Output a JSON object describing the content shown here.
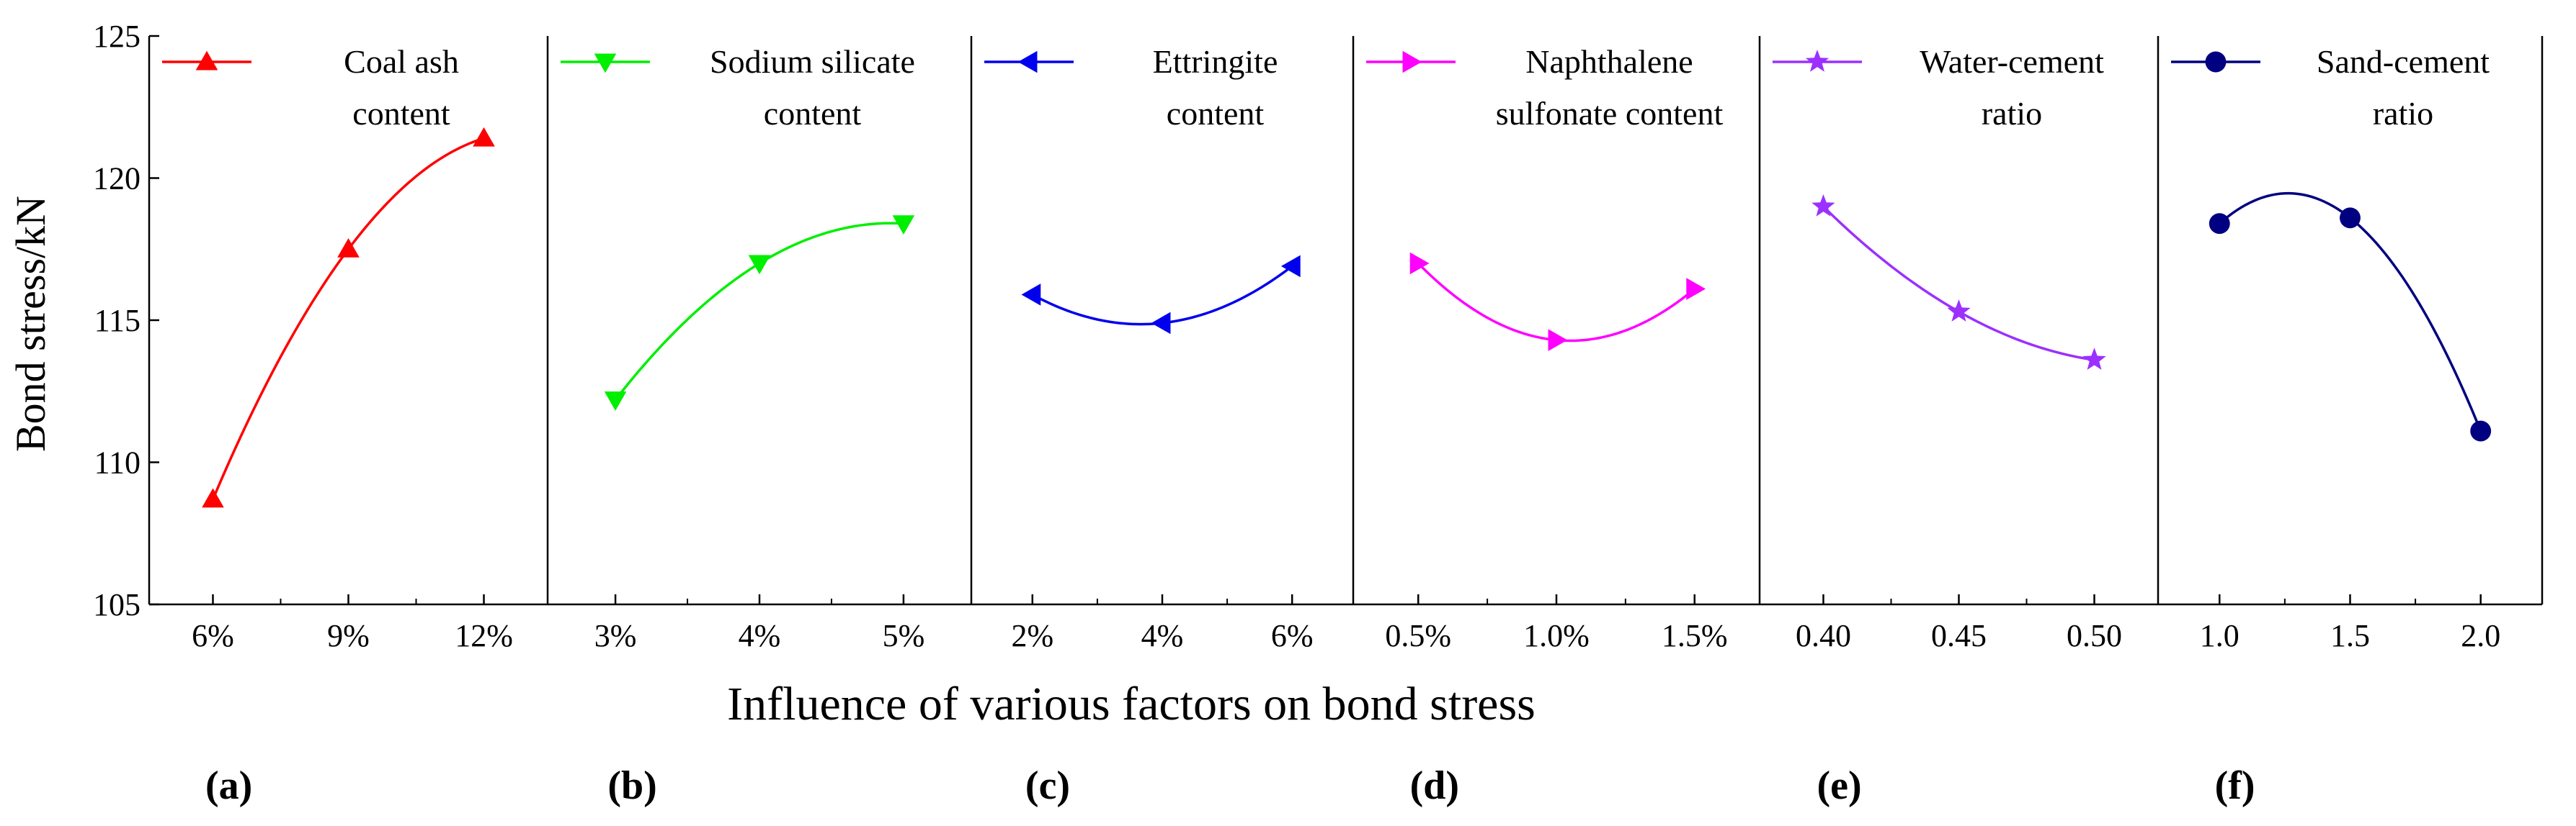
{
  "chart_data": {
    "type": "line",
    "title": "",
    "xlabel": "Influence of various factors on bond stress",
    "ylabel": "Bond stress/kN",
    "ylim": [
      105,
      125
    ],
    "yticks": [
      105,
      110,
      115,
      120,
      125
    ],
    "yticklabels": [
      "105",
      "110",
      "115",
      "120",
      "125"
    ],
    "grid": false,
    "panels": [
      {
        "tag": "(a)",
        "legend_lines": [
          "Coal ash",
          "content"
        ],
        "categories": [
          "6%",
          "9%",
          "12%"
        ],
        "values": [
          108.7,
          117.5,
          121.4
        ],
        "color": "#ff0000",
        "marker": "triangle-up"
      },
      {
        "tag": "(b)",
        "legend_lines": [
          "Sodium silicate",
          "content"
        ],
        "categories": [
          "3%",
          "4%",
          "5%"
        ],
        "values": [
          112.2,
          117.0,
          118.4
        ],
        "color": "#00ee00",
        "marker": "triangle-down"
      },
      {
        "tag": "(c)",
        "legend_lines": [
          "Ettringite",
          "content"
        ],
        "categories": [
          "2%",
          "4%",
          "6%"
        ],
        "values": [
          115.9,
          114.9,
          116.9
        ],
        "color": "#0000ee",
        "marker": "triangle-left"
      },
      {
        "tag": "(d)",
        "legend_lines": [
          "Naphthalene",
          "sulfonate content"
        ],
        "categories": [
          "0.5%",
          "1.0%",
          "1.5%"
        ],
        "values": [
          117.0,
          114.3,
          116.1
        ],
        "color": "#ff00ff",
        "marker": "triangle-right"
      },
      {
        "tag": "(e)",
        "legend_lines": [
          "Water-cement",
          "ratio"
        ],
        "categories": [
          "0.40",
          "0.45",
          "0.50"
        ],
        "values": [
          119.0,
          115.3,
          113.6
        ],
        "color": "#9b30ff",
        "marker": "star"
      },
      {
        "tag": "(f)",
        "legend_lines": [
          "Sand-cement",
          "ratio"
        ],
        "categories": [
          "1.0",
          "1.5",
          "2.0"
        ],
        "values": [
          118.4,
          118.6,
          111.1
        ],
        "color": "#000080",
        "marker": "circle"
      }
    ]
  }
}
